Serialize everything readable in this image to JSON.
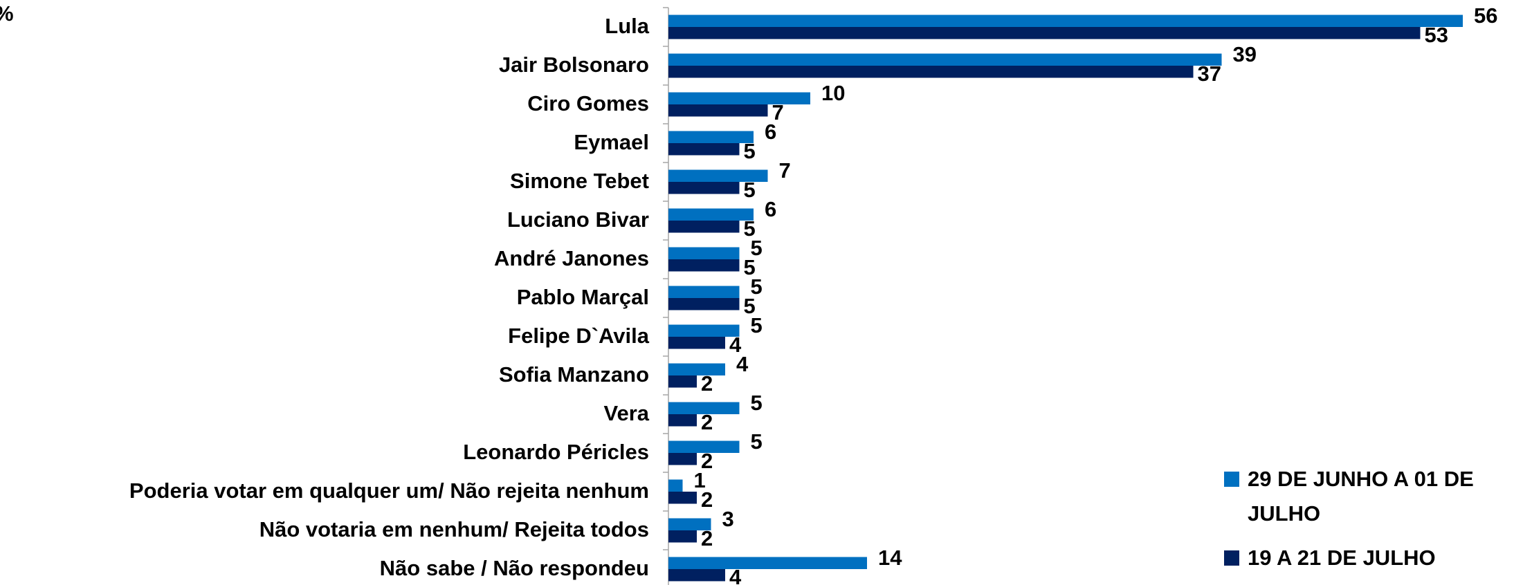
{
  "chart_data": {
    "type": "bar",
    "orientation": "horizontal",
    "title": "%",
    "categories": [
      "Lula",
      "Jair Bolsonaro",
      "Ciro Gomes",
      "Eymael",
      "Simone Tebet",
      "Luciano Bivar",
      "André Janones",
      "Pablo Marçal",
      "Felipe D`Avila",
      "Sofia Manzano",
      "Vera",
      "Leonardo Péricles",
      "Poderia votar em qualquer um/ Não rejeita nenhum",
      "Não votaria em nenhum/ Rejeita todos",
      "Não sabe / Não respondeu"
    ],
    "series": [
      {
        "name": "29 DE JUNHO A 01 DE JULHO",
        "color": "#0070c0",
        "values": [
          56,
          39,
          10,
          6,
          7,
          6,
          5,
          5,
          5,
          4,
          5,
          5,
          1,
          3,
          14
        ]
      },
      {
        "name": "19 A 21 DE JULHO",
        "color": "#002060",
        "values": [
          53,
          37,
          7,
          5,
          5,
          5,
          5,
          5,
          4,
          2,
          2,
          2,
          2,
          2,
          4
        ]
      }
    ],
    "legend": "bottom-right"
  }
}
